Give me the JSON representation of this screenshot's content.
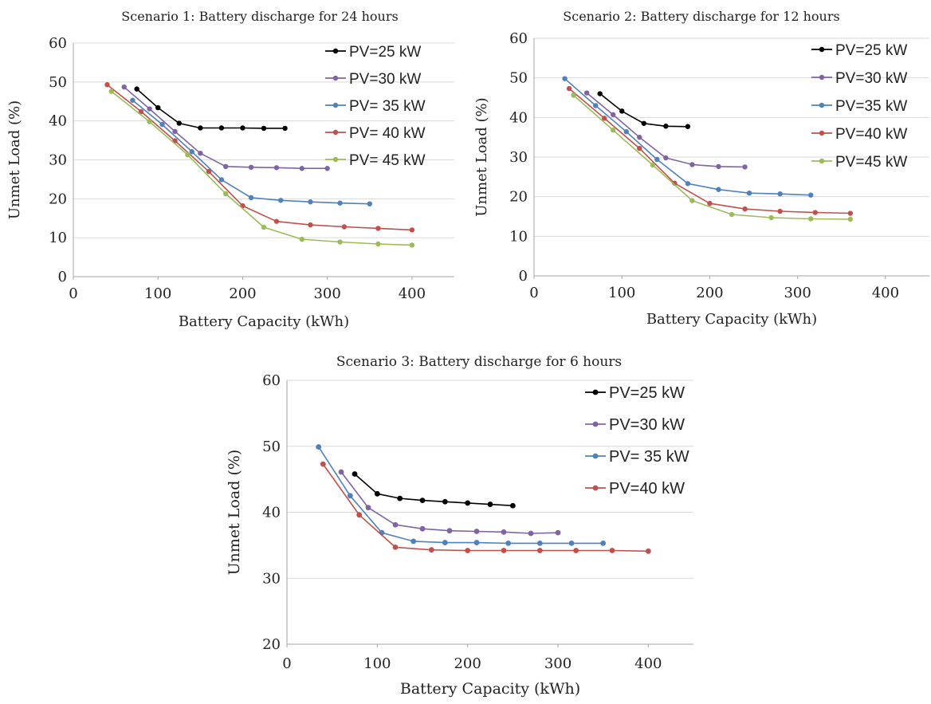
{
  "chart_data": [
    {
      "type": "line",
      "title": "Scenario 1: Battery discharge for 24 hours",
      "xlabel": "Battery Capacity (kWh)",
      "ylabel": "Unmet Load (%)",
      "xlim": [
        0,
        450
      ],
      "ylim": [
        0,
        60
      ],
      "xticks": [
        "0",
        "100",
        "200",
        "300",
        "400"
      ],
      "yticks": [
        "0",
        "10",
        "20",
        "30",
        "40",
        "50",
        "60"
      ],
      "grid": true,
      "legend": "top-right",
      "series": [
        {
          "name": "PV=25 kW",
          "color": "#000000",
          "x": [
            75,
            100,
            125,
            150,
            175,
            200,
            225,
            250
          ],
          "y": [
            48.2,
            43.4,
            39.4,
            38.2,
            38.2,
            38.2,
            38.1,
            38.1
          ]
        },
        {
          "name": "PV=30 kW",
          "color": "#8064A2",
          "x": [
            60,
            90,
            120,
            150,
            180,
            210,
            240,
            270,
            300
          ],
          "y": [
            48.7,
            43.1,
            37.3,
            31.7,
            28.3,
            28.1,
            28.0,
            27.8,
            27.8
          ]
        },
        {
          "name": "PV= 35 kW",
          "color": "#4F81BD",
          "x": [
            70,
            105,
            140,
            175,
            210,
            245,
            280,
            315,
            350
          ],
          "y": [
            45.3,
            39.1,
            32.1,
            24.9,
            20.3,
            19.6,
            19.2,
            18.9,
            18.7
          ]
        },
        {
          "name": "PV= 40 kW",
          "color": "#C0504D",
          "x": [
            40,
            80,
            120,
            160,
            200,
            240,
            280,
            320,
            360,
            400
          ],
          "y": [
            49.3,
            42.4,
            34.9,
            27.0,
            18.2,
            14.2,
            13.3,
            12.8,
            12.4,
            12.0
          ]
        },
        {
          "name": "PV= 45 kW",
          "color": "#9BBB59",
          "x": [
            45,
            90,
            135,
            180,
            225,
            270,
            315,
            360,
            400
          ],
          "y": [
            47.6,
            39.8,
            31.3,
            21.3,
            12.7,
            9.6,
            8.9,
            8.4,
            8.1
          ]
        }
      ]
    },
    {
      "type": "line",
      "title": "Scenario 2: Battery discharge for 12 hours",
      "xlabel": "Battery Capacity (kWh)",
      "ylabel": "Unmet Load (%)",
      "xlim": [
        0,
        450
      ],
      "ylim": [
        0,
        60
      ],
      "xticks": [
        "0",
        "100",
        "200",
        "300",
        "400"
      ],
      "yticks": [
        "0",
        "10",
        "20",
        "30",
        "40",
        "50",
        "60"
      ],
      "grid": true,
      "legend": "top-right",
      "series": [
        {
          "name": "PV=25 kW",
          "color": "#000000",
          "x": [
            75,
            100,
            125,
            150,
            175
          ],
          "y": [
            46.0,
            41.6,
            38.5,
            37.8,
            37.7
          ]
        },
        {
          "name": "PV=30 kW",
          "color": "#8064A2",
          "x": [
            60,
            90,
            120,
            150,
            180,
            210,
            240
          ],
          "y": [
            46.2,
            40.7,
            35.0,
            29.8,
            28.1,
            27.6,
            27.5
          ]
        },
        {
          "name": "PV=35 kW",
          "color": "#4F81BD",
          "x": [
            35,
            70,
            105,
            140,
            175,
            210,
            245,
            280,
            315
          ],
          "y": [
            49.8,
            43.0,
            36.4,
            29.4,
            23.3,
            21.8,
            20.9,
            20.7,
            20.4
          ]
        },
        {
          "name": "PV=40 kW",
          "color": "#C0504D",
          "x": [
            40,
            80,
            120,
            160,
            200,
            240,
            280,
            320,
            360
          ],
          "y": [
            47.3,
            39.8,
            32.2,
            23.4,
            18.3,
            16.9,
            16.3,
            16.0,
            15.8
          ]
        },
        {
          "name": "PV=45 kW",
          "color": "#9BBB59",
          "x": [
            45,
            90,
            135,
            180,
            225,
            270,
            315,
            360
          ],
          "y": [
            45.6,
            36.8,
            28.0,
            19.0,
            15.5,
            14.7,
            14.4,
            14.3
          ]
        }
      ]
    },
    {
      "type": "line",
      "title": "Scenario 3: Battery discharge for 6 hours",
      "xlabel": "Battery Capacity (kWh)",
      "ylabel": "Unmet Load (%)",
      "xlim": [
        0,
        450
      ],
      "ylim": [
        20,
        60
      ],
      "xticks": [
        "0",
        "100",
        "200",
        "300",
        "400"
      ],
      "yticks": [
        "20",
        "30",
        "40",
        "50",
        "60"
      ],
      "grid": true,
      "legend": "top-right",
      "series": [
        {
          "name": "PV=25 kW",
          "color": "#000000",
          "x": [
            75,
            100,
            125,
            150,
            175,
            200,
            225,
            250
          ],
          "y": [
            45.8,
            42.8,
            42.1,
            41.8,
            41.6,
            41.4,
            41.2,
            41.0
          ]
        },
        {
          "name": "PV=30 kW",
          "color": "#8064A2",
          "x": [
            60,
            90,
            120,
            150,
            180,
            210,
            240,
            270,
            300
          ],
          "y": [
            46.1,
            40.7,
            38.1,
            37.5,
            37.2,
            37.1,
            37.0,
            36.8,
            36.9
          ]
        },
        {
          "name": "PV= 35 kW",
          "color": "#4F81BD",
          "x": [
            35,
            70,
            105,
            140,
            175,
            210,
            245,
            280,
            315,
            350
          ],
          "y": [
            49.9,
            42.5,
            36.9,
            35.6,
            35.4,
            35.4,
            35.3,
            35.3,
            35.3,
            35.3
          ]
        },
        {
          "name": "PV=40 kW",
          "color": "#C0504D",
          "x": [
            40,
            80,
            120,
            160,
            200,
            240,
            280,
            320,
            360,
            400
          ],
          "y": [
            47.3,
            39.6,
            34.7,
            34.3,
            34.2,
            34.2,
            34.2,
            34.2,
            34.2,
            34.1
          ]
        }
      ]
    }
  ]
}
